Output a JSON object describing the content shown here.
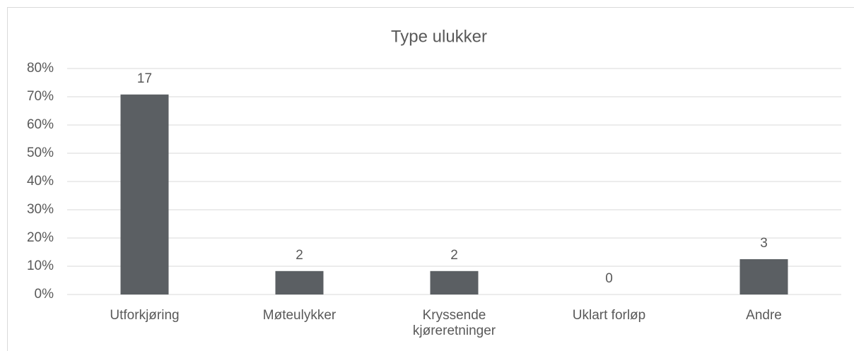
{
  "chart_data": {
    "type": "bar",
    "title": "Type ulukker",
    "categories": [
      "Utforkjøring",
      "Møteulykker",
      "Kryssende kjøreretninger",
      "Uklart forløp",
      "Andre"
    ],
    "values": [
      70.8,
      8.3,
      8.3,
      0,
      12.5
    ],
    "value_labels": [
      "17",
      "2",
      "2",
      "0",
      "3"
    ],
    "color": "#5b5f63",
    "ylim": [
      0,
      80
    ],
    "yticks": [
      {
        "value": 0,
        "label": "0%"
      },
      {
        "value": 10,
        "label": "10%"
      },
      {
        "value": 20,
        "label": "20%"
      },
      {
        "value": 30,
        "label": "30%"
      },
      {
        "value": 40,
        "label": "40%"
      },
      {
        "value": 50,
        "label": "50%"
      },
      {
        "value": 60,
        "label": "60%"
      },
      {
        "value": 70,
        "label": "70%"
      },
      {
        "value": 80,
        "label": "80%"
      }
    ],
    "grid": true
  }
}
